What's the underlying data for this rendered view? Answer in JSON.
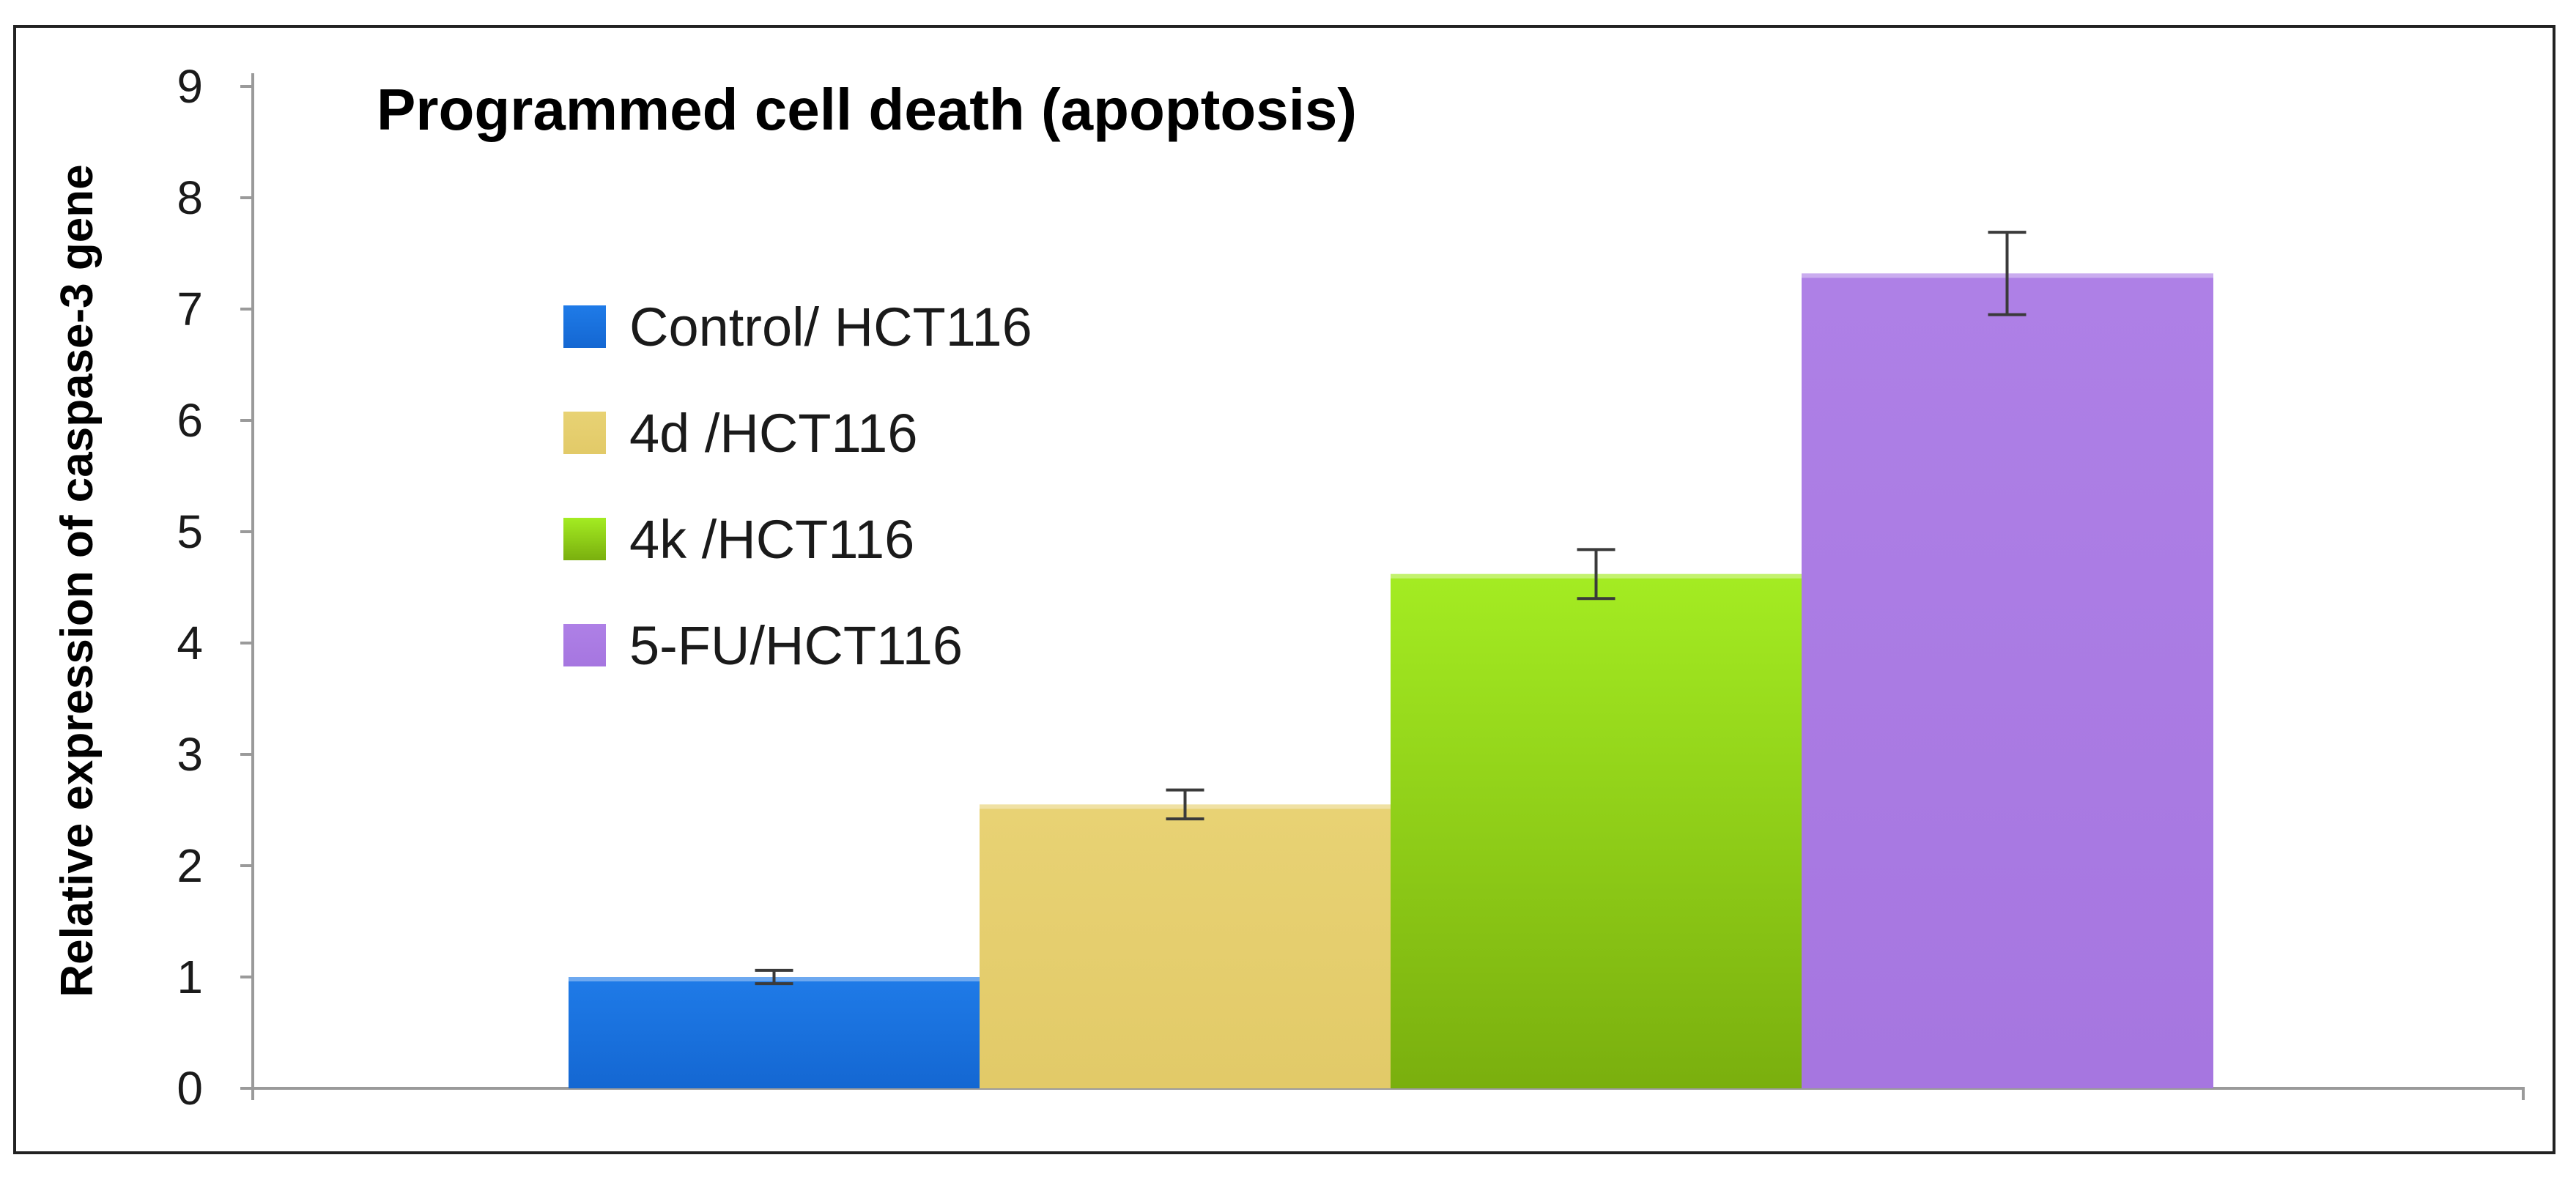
{
  "chart_data": {
    "type": "bar",
    "title": "Programmed cell death (apoptosis)",
    "ylabel": "Relative expression of caspase-3 gene",
    "xlabel": "",
    "ylim": [
      0,
      9
    ],
    "yticks": [
      "0",
      "1",
      "2",
      "3",
      "4",
      "5",
      "6",
      "7",
      "8",
      "9"
    ],
    "legend_position": "upper-left",
    "grid": false,
    "series": [
      {
        "name": "Control/ HCT116",
        "value": 1.0,
        "error": 0.06,
        "color": "#1f7be8",
        "color_dark": "#1467d2"
      },
      {
        "name": " 4d /HCT116",
        "value": 2.55,
        "error": 0.13,
        "color": "#e8d274",
        "color_dark": "#e2ca68"
      },
      {
        "name": "4k /HCT116",
        "value": 4.62,
        "error": 0.22,
        "color": "#a4ec22",
        "color_dark": "#7aaf0e"
      },
      {
        "name": "5-FU/HCT116",
        "value": 7.32,
        "error": 0.37,
        "color": "#ae80e6",
        "color_dark": "#a676e0"
      }
    ]
  }
}
